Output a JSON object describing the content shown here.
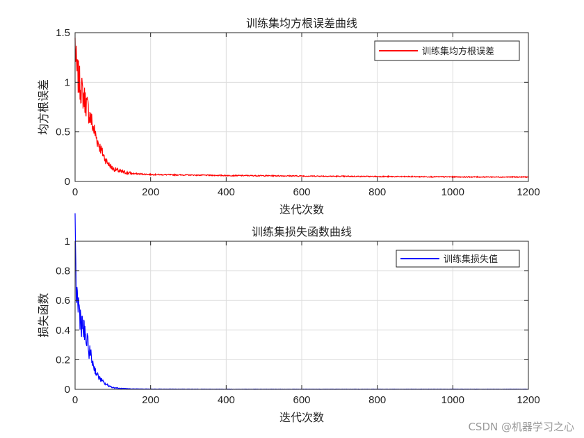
{
  "chart_data": [
    {
      "type": "line",
      "title": "训练集均方根误差曲线",
      "xlabel": "迭代次数",
      "ylabel": "均方根误差",
      "xlim": [
        0,
        1200
      ],
      "ylim": [
        0,
        1.5
      ],
      "xticks": [
        0,
        200,
        400,
        600,
        800,
        1000,
        1200
      ],
      "yticks": [
        0,
        0.5,
        1,
        1.5
      ],
      "ytick_labels": [
        "0",
        "0.5",
        "1",
        "1.5"
      ],
      "grid": true,
      "legend_position": "top-right",
      "series": [
        {
          "name": "训练集均方根误差",
          "color": "#ff0000",
          "x": [
            0,
            2,
            5,
            10,
            15,
            20,
            30,
            40,
            50,
            60,
            70,
            80,
            90,
            100,
            120,
            150,
            200,
            300,
            400,
            500,
            600,
            700,
            800,
            900,
            1000,
            1100,
            1200
          ],
          "y": [
            1.4,
            1.2,
            1.1,
            1.02,
            0.95,
            0.88,
            0.78,
            0.65,
            0.52,
            0.4,
            0.31,
            0.22,
            0.17,
            0.13,
            0.1,
            0.08,
            0.07,
            0.065,
            0.06,
            0.058,
            0.055,
            0.052,
            0.05,
            0.048,
            0.046,
            0.045,
            0.045
          ]
        }
      ]
    },
    {
      "type": "line",
      "title": "训练集损失函数曲线",
      "xlabel": "迭代次数",
      "ylabel": "损失函数",
      "xlim": [
        0,
        1200
      ],
      "ylim": [
        0,
        1
      ],
      "xticks": [
        0,
        200,
        400,
        600,
        800,
        1000,
        1200
      ],
      "yticks": [
        0,
        0.2,
        0.4,
        0.6,
        0.8,
        1
      ],
      "ytick_labels": [
        "0",
        "0.2",
        "0.4",
        "0.6",
        "0.8",
        "1"
      ],
      "grid": true,
      "legend_position": "top-right",
      "series": [
        {
          "name": "训练集损失值",
          "color": "#0000ff",
          "x": [
            0,
            2,
            5,
            10,
            15,
            20,
            30,
            40,
            50,
            60,
            70,
            80,
            100,
            120,
            150,
            200,
            300,
            400,
            600,
            800,
            1000,
            1200
          ],
          "y": [
            0.97,
            0.75,
            0.62,
            0.55,
            0.48,
            0.42,
            0.33,
            0.24,
            0.15,
            0.09,
            0.06,
            0.035,
            0.012,
            0.006,
            0.003,
            0.002,
            0.0015,
            0.001,
            0.001,
            0.001,
            0.001,
            0.001
          ]
        }
      ]
    }
  ],
  "watermark": "CSDN @机器学习之心"
}
